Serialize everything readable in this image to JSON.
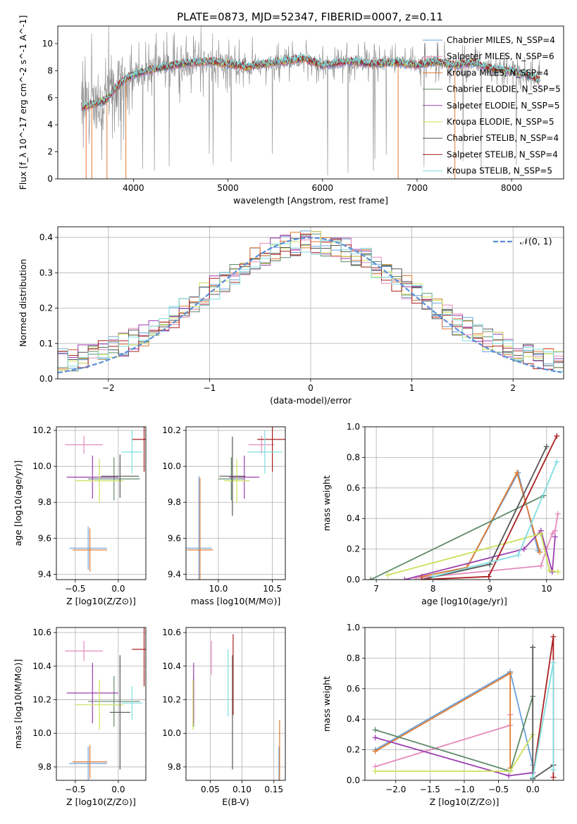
{
  "figure": {
    "title": "PLATE=0873, MJD=52347, FIBERID=0007, z=0.11"
  },
  "colors": {
    "Chabrier MILES": "#6aa0dc",
    "Salpeter MILES": "#e58bbd",
    "Kroupa MILES": "#e07a30",
    "Chabrier ELODIE": "#5f8a68",
    "Salpeter ELODIE": "#9b3fb0",
    "Kroupa ELODIE": "#cce05a",
    "Chabrier STELIB": "#555555",
    "Salpeter STELIB": "#aa1f1f",
    "Kroupa STELIB": "#7fdde0",
    "data": "#888888",
    "normal": "#5b8ed6"
  },
  "chart_data": [
    {
      "id": "spectrum",
      "type": "line",
      "title": "PLATE=0873, MJD=52347, FIBERID=0007, z=0.11",
      "xlabel": "wavelength [Angstrom, rest frame]",
      "ylabel": "Flux [f_λ 10^-17 erg cm^-2 s^-1 A^-1]",
      "xlim": [
        3200,
        8550
      ],
      "ylim": [
        0,
        11.3
      ],
      "xticks": [
        4000,
        5000,
        6000,
        7000,
        8000
      ],
      "yticks": [
        0,
        2,
        4,
        6,
        8,
        10
      ],
      "legend_loc": "upper right",
      "legend": [
        "Chabrier MILES, N_SSP=4",
        "Salpeter MILES, N_SSP=6",
        "Kroupa MILES, N_SSP=4",
        "Chabrier ELODIE, N_SSP=5",
        "Salpeter ELODIE, N_SSP=5",
        "Kroupa ELODIE, N_SSP=5",
        "Chabrier STELIB, N_SSP=4",
        "Salpeter STELIB, N_SSP=4",
        "Kroupa STELIB, N_SSP=5"
      ],
      "continuum": {
        "x": [
          3450,
          3600,
          3700,
          3800,
          3900,
          4000,
          4200,
          4500,
          4800,
          5000,
          5200,
          5500,
          5800,
          6000,
          6300,
          6500,
          6800,
          7000,
          7200,
          7400,
          7600,
          7800,
          8000,
          8200,
          8300
        ],
        "y": [
          5.3,
          5.6,
          5.8,
          6.6,
          7.3,
          7.7,
          8.1,
          8.5,
          8.7,
          8.5,
          8.3,
          8.6,
          8.9,
          8.4,
          8.7,
          8.5,
          8.6,
          8.4,
          8.7,
          8.4,
          8.6,
          8.1,
          8.0,
          7.6,
          7.2
        ]
      },
      "data_range": [
        3450,
        8300
      ]
    },
    {
      "id": "residuals",
      "type": "line",
      "xlabel": "(data-model)/error",
      "ylabel": "Normed distribution",
      "xlim": [
        -2.5,
        2.5
      ],
      "ylim": [
        0,
        0.43
      ],
      "xticks": [
        -2,
        -1,
        0,
        1,
        2
      ],
      "yticks": [
        0.0,
        0.1,
        0.2,
        0.3,
        0.4
      ],
      "legend": [
        "𝒩(0, 1)"
      ],
      "legend_loc": "upper right",
      "bin_width": 0.1
    },
    {
      "id": "age_vs_Z",
      "type": "scatter",
      "xlabel": "Z [log10(Z/Z⊙)]",
      "ylabel": "age [log10(age/yr)]",
      "xlim": [
        -0.72,
        0.32
      ],
      "ylim": [
        9.37,
        10.22
      ],
      "xticks": [
        -0.5,
        0.0
      ],
      "yticks": [
        9.4,
        9.6,
        9.8,
        10.0,
        10.2
      ],
      "points": [
        {
          "name": "Chabrier MILES",
          "x": -0.35,
          "y": 9.545,
          "xerr": 0.22,
          "yerr": 0.12
        },
        {
          "name": "Salpeter MILES",
          "x": -0.4,
          "y": 10.12,
          "xerr": 0.22,
          "yerr": 0.05
        },
        {
          "name": "Kroupa MILES",
          "x": -0.33,
          "y": 9.535,
          "xerr": 0.2,
          "yerr": 0.12
        },
        {
          "name": "Chabrier ELODIE",
          "x": -0.05,
          "y": 9.93,
          "xerr": 0.3,
          "yerr": 0.12
        },
        {
          "name": "Salpeter ELODIE",
          "x": -0.3,
          "y": 9.94,
          "xerr": 0.3,
          "yerr": 0.12
        },
        {
          "name": "Kroupa ELODIE",
          "x": -0.22,
          "y": 9.92,
          "xerr": 0.28,
          "yerr": 0.12
        },
        {
          "name": "Chabrier STELIB",
          "x": 0.02,
          "y": 9.945,
          "xerr": 0.22,
          "yerr": 0.12
        },
        {
          "name": "Salpeter STELIB",
          "x": 0.3,
          "y": 10.15,
          "xerr": 0.14,
          "yerr": 0.18
        },
        {
          "name": "Kroupa STELIB",
          "x": 0.16,
          "y": 10.08,
          "xerr": 0.12,
          "yerr": 0.12
        }
      ]
    },
    {
      "id": "age_vs_mass",
      "type": "scatter",
      "xlabel": "mass [log10(M/M⊙)]",
      "ylabel": "",
      "xlim": [
        9.7,
        10.62
      ],
      "ylim": [
        9.37,
        10.22
      ],
      "xticks": [
        10.0,
        10.5
      ],
      "yticks": [
        9.4,
        9.6,
        9.8,
        10.0,
        10.2
      ],
      "points": [
        {
          "name": "Chabrier MILES",
          "x": 9.82,
          "y": 9.545,
          "xerr": 0.12,
          "yerr": 0.4
        },
        {
          "name": "Salpeter MILES",
          "x": 10.4,
          "y": 10.12,
          "xerr": 0.12,
          "yerr": 0.05
        },
        {
          "name": "Kroupa MILES",
          "x": 9.83,
          "y": 9.535,
          "xerr": 0.12,
          "yerr": 0.4
        },
        {
          "name": "Chabrier ELODIE",
          "x": 10.12,
          "y": 9.93,
          "xerr": 0.12,
          "yerr": 0.12
        },
        {
          "name": "Salpeter ELODIE",
          "x": 10.24,
          "y": 9.94,
          "xerr": 0.14,
          "yerr": 0.12
        },
        {
          "name": "Kroupa ELODIE",
          "x": 10.17,
          "y": 9.92,
          "xerr": 0.12,
          "yerr": 0.12
        },
        {
          "name": "Chabrier STELIB",
          "x": 10.13,
          "y": 9.945,
          "xerr": 0.12,
          "yerr": 0.22
        },
        {
          "name": "Salpeter STELIB",
          "x": 10.5,
          "y": 10.15,
          "xerr": 0.14,
          "yerr": 0.18
        },
        {
          "name": "Kroupa STELIB",
          "x": 10.43,
          "y": 10.08,
          "xerr": 0.16,
          "yerr": 0.12
        }
      ]
    },
    {
      "id": "mass_vs_Z",
      "type": "scatter",
      "xlabel": "Z [log10(Z/Z⊙)]",
      "ylabel": "mass [log10(M/M⊙)]",
      "xlim": [
        -0.72,
        0.32
      ],
      "ylim": [
        9.72,
        10.63
      ],
      "xticks": [
        -0.5,
        0.0
      ],
      "yticks": [
        9.8,
        10.0,
        10.2,
        10.4,
        10.6
      ],
      "points": [
        {
          "name": "Chabrier MILES",
          "x": -0.35,
          "y": 9.82,
          "xerr": 0.22,
          "yerr": 0.1
        },
        {
          "name": "Salpeter MILES",
          "x": -0.4,
          "y": 10.49,
          "xerr": 0.22,
          "yerr": 0.06
        },
        {
          "name": "Kroupa MILES",
          "x": -0.33,
          "y": 9.83,
          "xerr": 0.2,
          "yerr": 0.1
        },
        {
          "name": "Chabrier ELODIE",
          "x": -0.05,
          "y": 10.19,
          "xerr": 0.3,
          "yerr": 0.15
        },
        {
          "name": "Salpeter ELODIE",
          "x": -0.3,
          "y": 10.24,
          "xerr": 0.3,
          "yerr": 0.18
        },
        {
          "name": "Kroupa ELODIE",
          "x": -0.22,
          "y": 10.17,
          "xerr": 0.28,
          "yerr": 0.15
        },
        {
          "name": "Chabrier STELIB",
          "x": 0.02,
          "y": 10.125,
          "xerr": 0.12,
          "yerr": 0.34
        },
        {
          "name": "Salpeter STELIB",
          "x": 0.3,
          "y": 10.5,
          "xerr": 0.14,
          "yerr": 0.22
        },
        {
          "name": "Kroupa STELIB",
          "x": 0.16,
          "y": 10.18,
          "xerr": 0.12,
          "yerr": 0.1
        }
      ]
    },
    {
      "id": "mass_vs_ebv",
      "type": "scatter",
      "xlabel": "E(B-V)",
      "ylabel": "",
      "xlim": [
        0.012,
        0.168
      ],
      "ylim": [
        9.72,
        10.63
      ],
      "xticks": [
        0.05,
        0.1,
        0.15
      ],
      "yticks": [
        9.8,
        10.0,
        10.2,
        10.4,
        10.6
      ],
      "points": [
        {
          "name": "Chabrier MILES",
          "x": 0.158,
          "y": 9.82,
          "xerr": 0,
          "yerr": 0.1
        },
        {
          "name": "Salpeter MILES",
          "x": 0.052,
          "y": 10.45,
          "xerr": 0,
          "yerr": 0.1
        },
        {
          "name": "Kroupa MILES",
          "x": 0.159,
          "y": 9.83,
          "xerr": 0,
          "yerr": 0.25
        },
        {
          "name": "Chabrier ELODIE",
          "x": 0.024,
          "y": 10.19,
          "xerr": 0,
          "yerr": 0.15
        },
        {
          "name": "Salpeter ELODIE",
          "x": 0.024,
          "y": 10.24,
          "xerr": 0,
          "yerr": 0.18
        },
        {
          "name": "Kroupa ELODIE",
          "x": 0.023,
          "y": 10.17,
          "xerr": 0,
          "yerr": 0.15
        },
        {
          "name": "Chabrier STELIB",
          "x": 0.085,
          "y": 10.125,
          "xerr": 0,
          "yerr": 0.34
        },
        {
          "name": "Salpeter STELIB",
          "x": 0.086,
          "y": 10.35,
          "xerr": 0,
          "yerr": 0.24
        },
        {
          "name": "Kroupa STELIB",
          "x": 0.078,
          "y": 10.3,
          "xerr": 0,
          "yerr": 0.2
        }
      ]
    },
    {
      "id": "weight_vs_age",
      "type": "line",
      "xlabel": "age [log10(age/yr)]",
      "ylabel": "mass weight",
      "xlim": [
        6.8,
        10.3
      ],
      "ylim": [
        0,
        1.0
      ],
      "xticks": [
        7,
        8,
        9,
        10
      ],
      "yticks": [
        0.0,
        0.2,
        0.4,
        0.6,
        0.8,
        1.0
      ],
      "series": [
        {
          "name": "Chabrier MILES",
          "x": [
            7.8,
            8.6,
            9.5,
            9.85
          ],
          "y": [
            0.02,
            0.08,
            0.7,
            0.19
          ]
        },
        {
          "name": "Salpeter MILES",
          "x": [
            7.7,
            9.9,
            10.0,
            10.1,
            10.15,
            10.2
          ],
          "y": [
            0.01,
            0.09,
            0.2,
            0.3,
            0.32,
            0.43
          ]
        },
        {
          "name": "Kroupa MILES",
          "x": [
            7.8,
            8.6,
            9.48,
            9.88
          ],
          "y": [
            0.02,
            0.08,
            0.7,
            0.18
          ]
        },
        {
          "name": "Chabrier ELODIE",
          "x": [
            6.9,
            9.95
          ],
          "y": [
            0.0,
            0.55
          ]
        },
        {
          "name": "Salpeter ELODIE",
          "x": [
            7.5,
            9.6,
            9.9,
            10.1,
            10.15
          ],
          "y": [
            0.0,
            0.2,
            0.32,
            0.05,
            0.28
          ]
        },
        {
          "name": "Kroupa ELODIE",
          "x": [
            7.2,
            9.9,
            10.05,
            10.2
          ],
          "y": [
            0.03,
            0.3,
            0.06,
            0.05
          ]
        },
        {
          "name": "Chabrier STELIB",
          "x": [
            7.8,
            9.0,
            10.0
          ],
          "y": [
            0.0,
            0.1,
            0.87
          ]
        },
        {
          "name": "Salpeter STELIB",
          "x": [
            7.8,
            8.98,
            10.18
          ],
          "y": [
            0.0,
            0.02,
            0.94
          ]
        },
        {
          "name": "Kroupa STELIB",
          "x": [
            8.0,
            9.5,
            10.18
          ],
          "y": [
            0.02,
            0.16,
            0.77
          ]
        }
      ]
    },
    {
      "id": "weight_vs_Z",
      "type": "line",
      "xlabel": "Z [log10(Z/Z⊙)]",
      "ylabel": "mass weight",
      "xlim": [
        -2.45,
        0.45
      ],
      "ylim": [
        0,
        1.0
      ],
      "xticks": [
        -2.0,
        -1.5,
        -1.0,
        -0.5,
        0.0
      ],
      "yticks": [
        0.0,
        0.2,
        0.4,
        0.6,
        0.8,
        1.0
      ],
      "series": [
        {
          "name": "Chabrier MILES",
          "x": [
            -2.3,
            -0.33,
            0.0
          ],
          "y": [
            0.2,
            0.71,
            0.1
          ]
        },
        {
          "name": "Salpeter MILES",
          "x": [
            -2.3,
            -0.33,
            -0.33
          ],
          "y": [
            0.09,
            0.36,
            0.43
          ]
        },
        {
          "name": "Kroupa MILES",
          "x": [
            -2.3,
            -0.33,
            -0.33
          ],
          "y": [
            0.19,
            0.7,
            0.08
          ]
        },
        {
          "name": "Chabrier ELODIE",
          "x": [
            -2.3,
            -0.33,
            0.0
          ],
          "y": [
            0.33,
            0.06,
            0.55
          ]
        },
        {
          "name": "Salpeter ELODIE",
          "x": [
            -2.3,
            -0.35,
            0.0
          ],
          "y": [
            0.28,
            0.03,
            0.05
          ]
        },
        {
          "name": "Kroupa ELODIE",
          "x": [
            -2.3,
            -0.33,
            0.0
          ],
          "y": [
            0.06,
            0.06,
            0.3
          ]
        },
        {
          "name": "Chabrier STELIB",
          "x": [
            0.0,
            0.0,
            0.3
          ],
          "y": [
            0.87,
            0.01,
            0.1
          ]
        },
        {
          "name": "Salpeter STELIB",
          "x": [
            0.0,
            0.3,
            0.3
          ],
          "y": [
            0.02,
            0.94,
            0.02
          ]
        },
        {
          "name": "Kroupa STELIB",
          "x": [
            0.0,
            0.3,
            0.3
          ],
          "y": [
            0.02,
            0.77,
            0.07
          ]
        }
      ]
    }
  ]
}
